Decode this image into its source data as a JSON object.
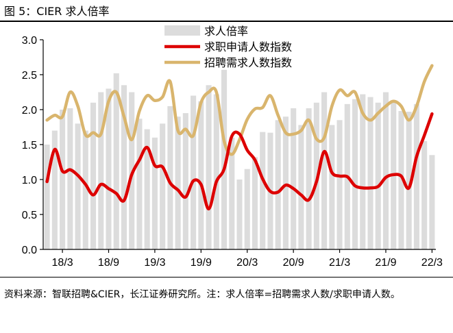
{
  "figure": {
    "title": "图 5：CIER 求人倍率",
    "source": "资料来源：智联招聘&CIER，长江证券研究所。注：求人倍率=招聘需求人数/求职申请人数。"
  },
  "chart_data": {
    "type": "bar+line",
    "x": [
      "18/1",
      "18/2",
      "18/3",
      "18/4",
      "18/5",
      "18/6",
      "18/7",
      "18/8",
      "18/9",
      "18/10",
      "18/11",
      "18/12",
      "19/1",
      "19/2",
      "19/3",
      "19/4",
      "19/5",
      "19/6",
      "19/7",
      "19/8",
      "19/9",
      "19/10",
      "19/11",
      "19/12",
      "20/1",
      "20/2",
      "20/3",
      "20/4",
      "20/5",
      "20/6",
      "20/7",
      "20/8",
      "20/9",
      "20/10",
      "20/11",
      "20/12",
      "21/1",
      "21/2",
      "21/3",
      "21/4",
      "21/5",
      "21/6",
      "21/7",
      "21/8",
      "21/9",
      "21/10",
      "21/11",
      "21/12",
      "22/1",
      "22/2",
      "22/3"
    ],
    "x_tick_labels": [
      "18/3",
      "18/9",
      "19/3",
      "19/9",
      "20/3",
      "20/9",
      "21/3",
      "21/9",
      "22/3"
    ],
    "ylim": [
      0.0,
      3.0
    ],
    "y_ticks": [
      "0.0",
      "0.5",
      "1.0",
      "1.5",
      "2.0",
      "2.5",
      "3.0"
    ],
    "grid": false,
    "legend_position": "top-center",
    "series": [
      {
        "name": "求人倍率",
        "kind": "bar",
        "color": "#dcdcdc",
        "values": [
          1.5,
          1.7,
          2.0,
          2.02,
          1.8,
          1.7,
          2.1,
          2.25,
          2.3,
          2.52,
          2.35,
          2.25,
          1.87,
          1.72,
          1.6,
          1.8,
          2.05,
          1.9,
          1.95,
          2.2,
          2.12,
          2.35,
          2.22,
          2.57,
          1.6,
          1.0,
          1.15,
          1.32,
          1.68,
          1.67,
          1.85,
          1.9,
          2.02,
          1.78,
          2.02,
          2.1,
          2.25,
          1.78,
          1.85,
          2.08,
          2.15,
          2.22,
          2.18,
          2.1,
          2.25,
          2.1,
          1.98,
          1.97,
          2.08,
          1.55,
          1.35
        ]
      },
      {
        "name": "求职申请人数指数",
        "kind": "line",
        "color": "#dd0000",
        "values": [
          0.97,
          1.43,
          1.12,
          1.14,
          1.06,
          0.93,
          0.78,
          0.93,
          0.87,
          0.8,
          0.7,
          1.07,
          1.28,
          1.46,
          1.2,
          1.18,
          0.95,
          0.85,
          0.75,
          0.98,
          0.93,
          0.58,
          0.97,
          1.15,
          1.62,
          1.65,
          1.42,
          1.28,
          1.01,
          0.83,
          0.82,
          0.92,
          0.87,
          0.78,
          0.71,
          0.97,
          1.4,
          1.1,
          1.05,
          1.04,
          0.91,
          0.88,
          0.88,
          0.9,
          1.03,
          1.07,
          1.05,
          0.88,
          1.33,
          1.63,
          1.94
        ]
      },
      {
        "name": "招聘需求人数指数",
        "kind": "line",
        "color": "#d9b56d",
        "values": [
          1.85,
          1.92,
          1.9,
          2.25,
          2.05,
          1.64,
          1.67,
          1.65,
          2.12,
          2.25,
          1.9,
          1.57,
          1.98,
          2.2,
          2.13,
          2.18,
          2.4,
          1.7,
          1.72,
          1.63,
          2.1,
          2.25,
          2.25,
          1.55,
          1.36,
          1.57,
          1.86,
          2.01,
          2.03,
          2.2,
          1.92,
          1.67,
          1.65,
          1.7,
          1.85,
          1.58,
          1.6,
          2.05,
          2.28,
          2.2,
          2.25,
          1.95,
          1.85,
          1.95,
          2.05,
          2.12,
          2.05,
          1.85,
          2.05,
          2.4,
          2.63
        ]
      }
    ]
  }
}
